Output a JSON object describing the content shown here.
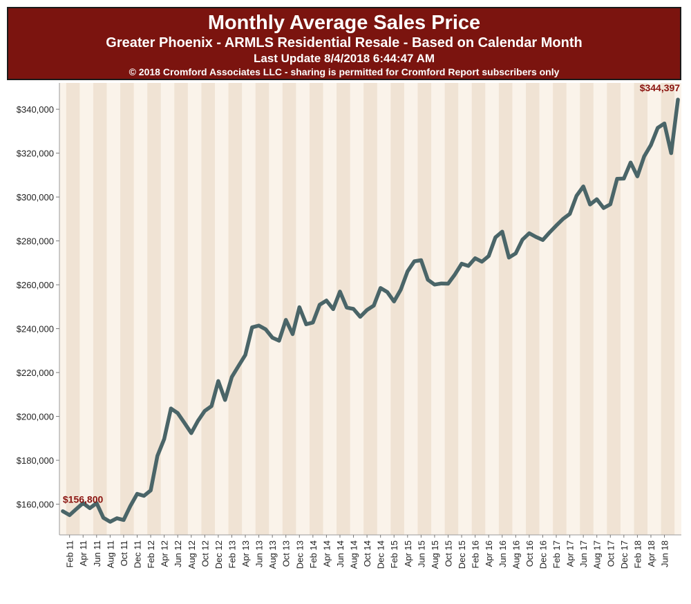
{
  "header": {
    "title": "Monthly Average Sales Price",
    "subtitle": "Greater Phoenix - ARMLS Residential Resale - Based on Calendar Month",
    "update": "Last Update 8/4/2018 6:44:47 AM",
    "copyright": "© 2018 Cromford Associates LLC - sharing is permitted for Cromford Report subscribers only"
  },
  "colors": {
    "header_bg": "#7b140f",
    "band_dark": "#f0e3d4",
    "band_light": "#faf3ea",
    "line": "#4a6568",
    "annotation": "#8b1410"
  },
  "chart_data": {
    "type": "line",
    "title": "Monthly Average Sales Price",
    "xlabel": "",
    "ylabel": "",
    "ylim": [
      146000,
      352000
    ],
    "yticks": [
      160000,
      180000,
      200000,
      220000,
      240000,
      260000,
      280000,
      300000,
      320000,
      340000
    ],
    "ytick_labels": [
      "$160,000",
      "$180,000",
      "$200,000",
      "$220,000",
      "$240,000",
      "$260,000",
      "$280,000",
      "$300,000",
      "$320,000",
      "$340,000"
    ],
    "xtick_labels": [
      "Feb 11",
      "Apr 11",
      "Jun 11",
      "Aug 11",
      "Oct 11",
      "Dec 11",
      "Feb 12",
      "Apr 12",
      "Jun 12",
      "Aug 12",
      "Oct 12",
      "Dec 12",
      "Feb 13",
      "Apr 13",
      "Jun 13",
      "Aug 13",
      "Oct 13",
      "Dec 13",
      "Feb 14",
      "Apr 14",
      "Jun 14",
      "Aug 14",
      "Oct 14",
      "Dec 14",
      "Feb 15",
      "Apr 15",
      "Jun 15",
      "Aug 15",
      "Oct 15",
      "Dec 15",
      "Feb 16",
      "Apr 16",
      "Jun 16",
      "Aug 16",
      "Oct 16",
      "Dec 16",
      "Feb 17",
      "Apr 17",
      "Jun 17",
      "Aug 17",
      "Oct 17",
      "Dec 17",
      "Feb 18",
      "Apr 18",
      "Jun 18"
    ],
    "start_month": "Jan 2011",
    "series": [
      {
        "name": "Monthly Average Sales Price",
        "values": [
          156800,
          155000,
          157800,
          160500,
          158200,
          160500,
          153800,
          152000,
          153600,
          152800,
          159200,
          164700,
          163800,
          166300,
          182000,
          189700,
          203600,
          201500,
          197000,
          192400,
          198000,
          202500,
          204700,
          216100,
          207500,
          218000,
          223000,
          228000,
          240600,
          241400,
          239700,
          235900,
          234500,
          244000,
          237500,
          249800,
          242000,
          242800,
          250900,
          252800,
          248900,
          256900,
          249600,
          249000,
          245400,
          248500,
          250500,
          258500,
          256700,
          252400,
          257800,
          266100,
          270700,
          271200,
          262300,
          260100,
          260600,
          260500,
          264700,
          269600,
          268600,
          272100,
          270500,
          273100,
          281600,
          284200,
          272400,
          274300,
          280600,
          283500,
          281800,
          280400,
          283800,
          287000,
          290000,
          292300,
          300600,
          304800,
          296600,
          299000,
          295000,
          296700,
          308300,
          308400,
          315700,
          309400,
          318500,
          323700,
          331500,
          333500,
          320000,
          344397
        ]
      }
    ],
    "annotations": [
      {
        "label": "$156,800",
        "index": 0
      },
      {
        "label": "$344,397",
        "index": 91
      }
    ]
  }
}
